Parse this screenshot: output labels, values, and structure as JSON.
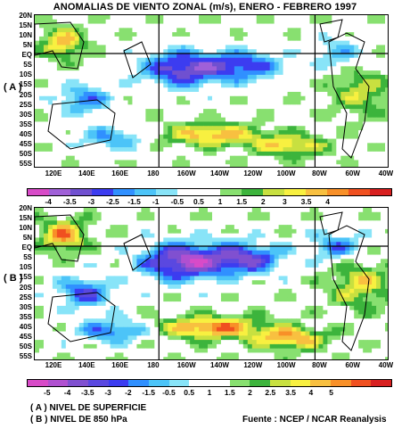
{
  "title": "ANOMALIAS DE VIENTO ZONAL (m/s), ENERO - FEBRERO 1997",
  "latitude_labels": [
    "20N",
    "15N",
    "10N",
    "5N",
    "EQ",
    "5S",
    "10S",
    "15S",
    "20S",
    "25S",
    "30S",
    "35S",
    "40S",
    "45S",
    "50S",
    "55S"
  ],
  "longitude_labels": [
    "120E",
    "140E",
    "160E",
    "180",
    "160W",
    "140W",
    "120W",
    "100W",
    "80W",
    "60W",
    "40W"
  ],
  "panels": [
    {
      "label": "( A )",
      "colorbar_labels": [
        "-4",
        "-3.5",
        "-3",
        "-2.5",
        "-1.5",
        "-1",
        "-0.5",
        "0.5",
        "1",
        "1.5",
        "2",
        "3",
        "3.5",
        "4"
      ],
      "colorbar_colors": [
        "#d84bc8",
        "#a060d8",
        "#7050d0",
        "#3c3cf0",
        "#3090ff",
        "#4cc4f8",
        "#88e4f8",
        "#ffffff",
        "#ffffff",
        "#88e070",
        "#3cb43c",
        "#c8e040",
        "#f8f040",
        "#f8c040",
        "#f89028",
        "#f05020",
        "#d82020"
      ]
    },
    {
      "label": "( B )",
      "colorbar_labels": [
        "-5",
        "-4",
        "-3.5",
        "-3",
        "-2",
        "-1.5",
        "-0.5",
        "0.5",
        "1",
        "1.5",
        "2",
        "2.5",
        "3.5",
        "4",
        "5"
      ],
      "colorbar_colors": [
        "#d84bc8",
        "#b050d0",
        "#8050d0",
        "#5a48e0",
        "#3c3cf0",
        "#3090ff",
        "#4cc4f8",
        "#88e4f8",
        "#ffffff",
        "#ffffff",
        "#88e070",
        "#3cb43c",
        "#c8e040",
        "#f8f040",
        "#f8c040",
        "#f89028",
        "#f05020",
        "#d82020"
      ]
    }
  ],
  "footer": {
    "line_a": "( A )  NIVEL DE SUPERFICIE",
    "line_b": "( B )  NIVEL DE 850 hPa",
    "source": "Fuente : NCEP / NCAR Reanalysis"
  }
}
